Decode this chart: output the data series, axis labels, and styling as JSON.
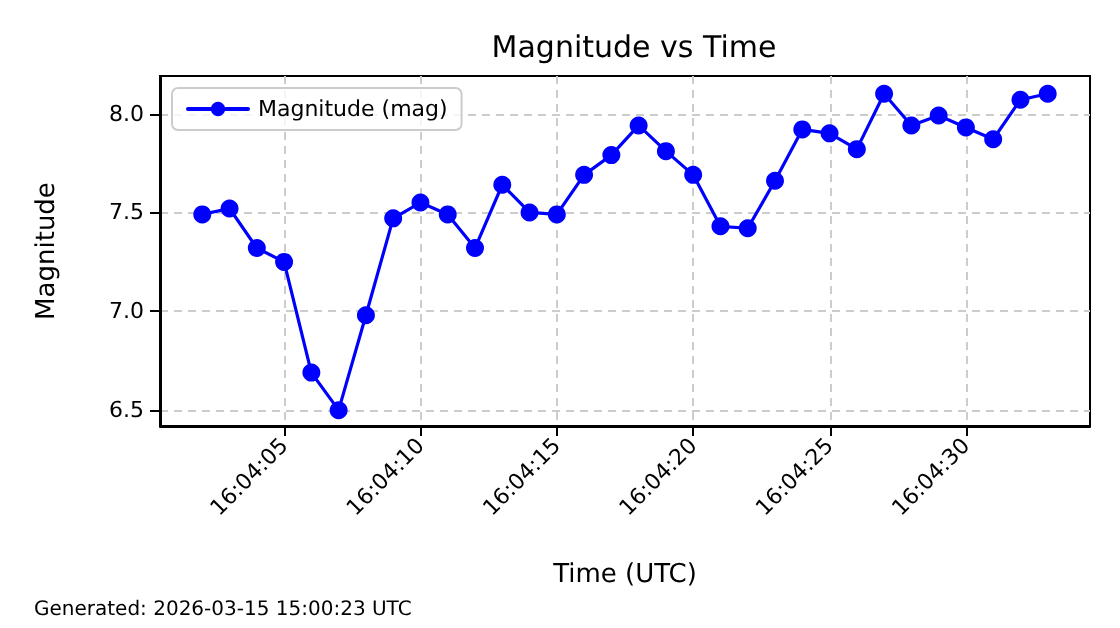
{
  "chart_data": {
    "type": "line",
    "title": "Magnitude vs Time",
    "xlabel": "Time (UTC)",
    "ylabel": "Magnitude",
    "x": [
      "2026-03-15T16:04:02",
      "2026-03-15T16:04:03",
      "2026-03-15T16:04:04",
      "2026-03-15T16:04:05",
      "2026-03-15T16:04:06",
      "2026-03-15T16:04:07",
      "2026-03-15T16:04:08",
      "2026-03-15T16:04:09",
      "2026-03-15T16:04:10",
      "2026-03-15T16:04:11",
      "2026-03-15T16:04:12",
      "2026-03-15T16:04:13",
      "2026-03-15T16:04:14",
      "2026-03-15T16:04:15",
      "2026-03-15T16:04:16",
      "2026-03-15T16:04:17",
      "2026-03-15T16:04:18",
      "2026-03-15T16:04:19",
      "2026-03-15T16:04:20",
      "2026-03-15T16:04:21",
      "2026-03-15T16:04:22",
      "2026-03-15T16:04:23",
      "2026-03-15T16:04:24",
      "2026-03-15T16:04:25",
      "2026-03-15T16:04:26",
      "2026-03-15T16:04:27",
      "2026-03-15T16:04:28",
      "2026-03-15T16:04:29",
      "2026-03-15T16:04:30",
      "2026-03-15T16:04:31",
      "2026-03-15T16:04:32",
      "2026-03-15T16:04:33"
    ],
    "series": [
      {
        "name": "Magnitude (mag)",
        "color": "#0000ff",
        "values": [
          7.49,
          7.52,
          7.32,
          7.25,
          6.69,
          6.5,
          6.98,
          7.47,
          7.55,
          7.49,
          7.32,
          7.64,
          7.5,
          7.49,
          7.69,
          7.79,
          7.94,
          7.81,
          7.69,
          7.43,
          7.42,
          7.66,
          7.92,
          7.9,
          7.82,
          8.1,
          7.94,
          7.99,
          7.93,
          7.87,
          8.07,
          8.1
        ]
      }
    ],
    "xlim": [
      "2026-03-15T16:04:00.45",
      "2026-03-15T16:04:34.55"
    ],
    "xticks": [
      {
        "value": "2026-03-15T16:04:05",
        "label": "16:04:05"
      },
      {
        "value": "2026-03-15T16:04:10",
        "label": "16:04:10"
      },
      {
        "value": "2026-03-15T16:04:15",
        "label": "16:04:15"
      },
      {
        "value": "2026-03-15T16:04:20",
        "label": "16:04:20"
      },
      {
        "value": "2026-03-15T16:04:25",
        "label": "16:04:25"
      },
      {
        "value": "2026-03-15T16:04:30",
        "label": "16:04:30"
      }
    ],
    "ylim": [
      6.42,
      8.19
    ],
    "yticks": [
      6.5,
      {
        "value": 7,
        "label": "7.0"
      },
      7.5,
      {
        "value": 8,
        "label": "8.0"
      }
    ],
    "grid": true,
    "legend": "top left",
    "marker": "circle",
    "line_style": "solid",
    "annotations": [
      "Generated: 2026-03-15 15:00:23 UTC"
    ]
  }
}
